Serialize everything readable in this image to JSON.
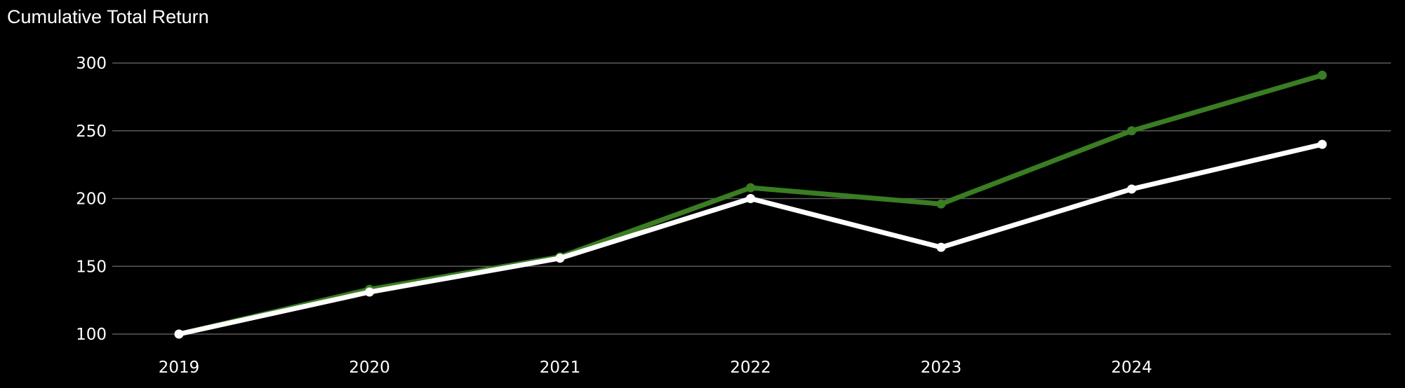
{
  "chart_data": {
    "type": "line",
    "title": "Cumulative Total Return",
    "xlabel": "",
    "ylabel": "",
    "x": [
      "2019",
      "2020",
      "2021",
      "2022",
      "2023",
      "2024",
      ""
    ],
    "x_tick_labels": [
      "2019",
      "2020",
      "2021",
      "2022",
      "2023",
      "2024"
    ],
    "ylim": [
      90,
      310
    ],
    "y_ticks": [
      100,
      150,
      200,
      250,
      300
    ],
    "grid": "horizontal",
    "legend": "none",
    "series": [
      {
        "color": "#3a7d22",
        "values": [
          100,
          133,
          157,
          208,
          196,
          250,
          291
        ]
      },
      {
        "color": "#ffffff",
        "values": [
          100,
          131,
          156,
          200,
          164,
          207,
          240
        ]
      }
    ]
  }
}
